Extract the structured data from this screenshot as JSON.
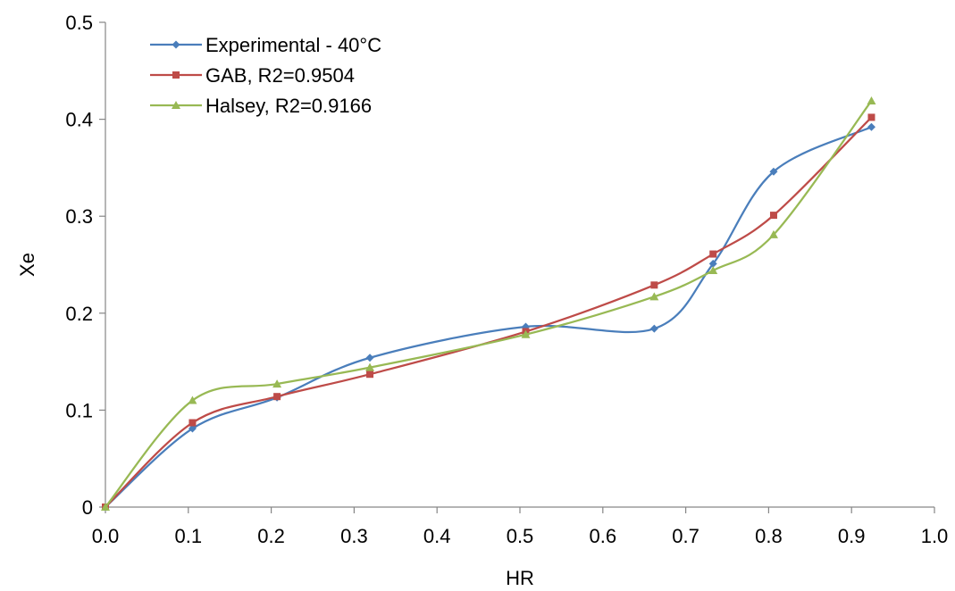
{
  "chart_data": {
    "type": "line",
    "xlabel": "HR",
    "ylabel": "Xe",
    "xlim": [
      0,
      1.0
    ],
    "ylim": [
      0,
      0.5
    ],
    "x_ticks": [
      "0.0",
      "0.1",
      "0.2",
      "0.3",
      "0.4",
      "0.5",
      "0.6",
      "0.7",
      "0.8",
      "0.9",
      "1.0"
    ],
    "y_ticks": [
      "0",
      "0.1",
      "0.2",
      "0.3",
      "0.4",
      "0.5"
    ],
    "grid": false,
    "legend_position": "top-left",
    "smoothed": true,
    "series": [
      {
        "name": "Experimental - 40°C",
        "color": "#4a7ebb",
        "marker": "diamond",
        "x": [
          0.0,
          0.105,
          0.207,
          0.319,
          0.507,
          0.662,
          0.733,
          0.806,
          0.924
        ],
        "y": [
          0.0,
          0.081,
          0.113,
          0.154,
          0.186,
          0.184,
          0.251,
          0.346,
          0.392
        ]
      },
      {
        "name": "GAB, R2=0.9504",
        "color": "#be4b48",
        "marker": "square",
        "x": [
          0.0,
          0.105,
          0.207,
          0.319,
          0.507,
          0.662,
          0.733,
          0.806,
          0.924
        ],
        "y": [
          0.0,
          0.087,
          0.114,
          0.137,
          0.181,
          0.229,
          0.261,
          0.301,
          0.402
        ]
      },
      {
        "name": "Halsey, R2=0.9166",
        "color": "#98b954",
        "marker": "triangle",
        "x": [
          0.0,
          0.105,
          0.207,
          0.319,
          0.507,
          0.662,
          0.733,
          0.806,
          0.924
        ],
        "y": [
          0.0,
          0.11,
          0.127,
          0.144,
          0.178,
          0.217,
          0.244,
          0.281,
          0.419
        ]
      }
    ]
  }
}
